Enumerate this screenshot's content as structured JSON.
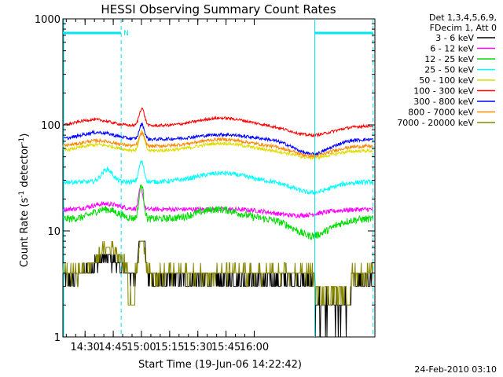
{
  "chart_data": {
    "type": "line",
    "title": "HESSI Observing Summary Count Rates",
    "xlabel": "Start Time (19-Jun-06 14:22:42)",
    "ylabel_main": "Count Rate (s",
    "ylabel_sup1": "-1",
    "ylabel_mid": " detector",
    "ylabel_sup2": "-1",
    "ylabel_end": ")",
    "y_scale": "log",
    "ylim": [
      1,
      1000
    ],
    "xlim_minutes": [
      -4.5,
      161.5
    ],
    "x_ticks": [
      {
        "label": "14:30",
        "min": 7.3
      },
      {
        "label": "14:45",
        "min": 22.3
      },
      {
        "label": "15:00",
        "min": 37.3
      },
      {
        "label": "15:15",
        "min": 52.3
      },
      {
        "label": "15:30",
        "min": 67.3
      },
      {
        "label": "15:45",
        "min": 82.3
      },
      {
        "label": "16:00",
        "min": 97.3
      }
    ],
    "y_ticks": [
      {
        "label": "1",
        "value": 1
      },
      {
        "label": "10",
        "value": 10
      },
      {
        "label": "100",
        "value": 100
      },
      {
        "label": "1000",
        "value": 1000
      }
    ],
    "legend_header": [
      "Det 1,3,4,5,6,9,",
      "FDecim 1, Att 0"
    ],
    "series": [
      {
        "name": "3 - 6 keV",
        "color": "#000000"
      },
      {
        "name": "6 - 12 keV",
        "color": "#ff00ff"
      },
      {
        "name": "12 - 25 keV",
        "color": "#00dd00"
      },
      {
        "name": "25 - 50 keV",
        "color": "#00ffff"
      },
      {
        "name": "50 - 100 keV",
        "color": "#dddd00"
      },
      {
        "name": "100 - 300 keV",
        "color": "#ff0000"
      },
      {
        "name": "300 - 800 keV",
        "color": "#0000ff"
      },
      {
        "name": "800 - 7000 keV",
        "color": "#ff8800"
      },
      {
        "name": "7000 - 20000 keV",
        "color": "#888800"
      }
    ],
    "night_bars": [
      {
        "x0": -4.5,
        "x1": 26.5,
        "label": "N"
      },
      {
        "x0": 129.5,
        "x1": 160.5,
        "label": ""
      }
    ],
    "saa_lines": [
      26.5,
      129.5,
      160.5
    ],
    "footer_date": "24-Feb-2010 03:10"
  }
}
